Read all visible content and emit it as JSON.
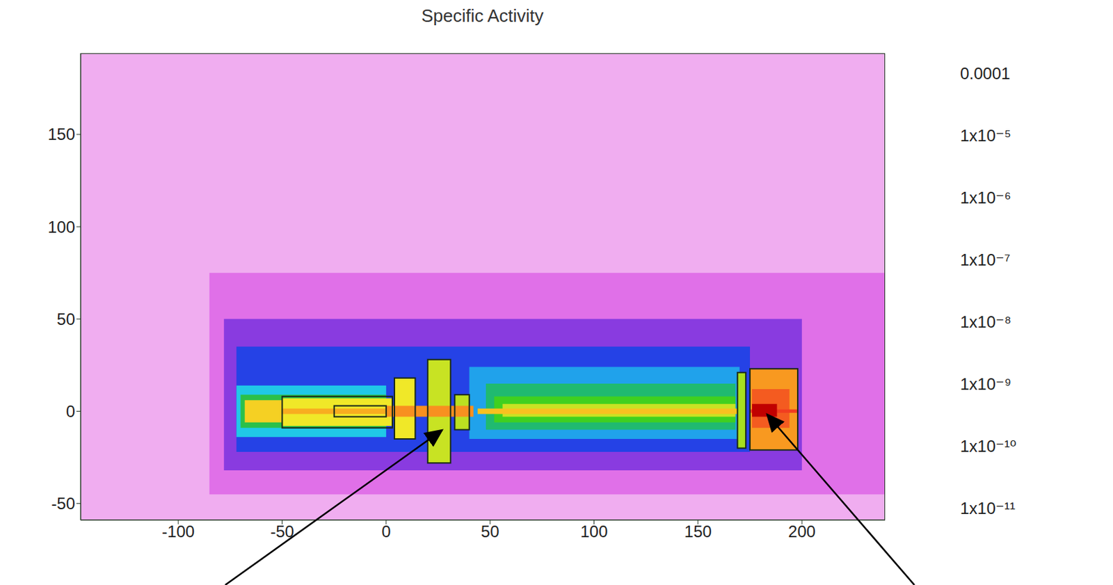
{
  "chart_data": {
    "type": "heatmap",
    "title": "Specific Activity",
    "xlim": [
      -147,
      240
    ],
    "ylim": [
      -59,
      194
    ],
    "xticks": [
      -100,
      -50,
      0,
      50,
      100,
      150,
      200
    ],
    "yticks": [
      -50,
      0,
      50,
      100,
      150
    ],
    "cells": [
      [
        -147,
        240,
        -59,
        194,
        3e-11
      ],
      [
        -85,
        240,
        -45,
        75,
        1e-10
      ],
      [
        -78,
        200,
        -32,
        50,
        4e-10
      ],
      [
        -72,
        175,
        -22,
        35,
        1.5e-09
      ],
      [
        -72,
        0,
        -14,
        14,
        1e-08
      ],
      [
        -70,
        0,
        -9,
        9,
        5e-08
      ],
      [
        40,
        170,
        -15,
        24,
        6e-09
      ],
      [
        48,
        168,
        -10,
        15,
        3e-08
      ],
      [
        52,
        168,
        -6,
        8,
        1e-07
      ],
      [
        56,
        168,
        -3,
        4,
        5e-07
      ],
      [
        44,
        170,
        -1.5,
        1.5,
        3e-06
      ],
      [
        -68,
        -50,
        -6,
        6,
        2e-06
      ],
      [
        -50,
        3,
        -8,
        7,
        1e-06
      ],
      [
        -50,
        3,
        -1.5,
        1.5,
        5e-06
      ],
      [
        4,
        14,
        -15,
        18,
        1e-06
      ],
      [
        20,
        31,
        -28,
        28,
        5e-07
      ],
      [
        33,
        40,
        -10,
        9,
        4e-07
      ],
      [
        0,
        42,
        -3,
        3,
        1e-05
      ],
      [
        169,
        173,
        -20,
        21,
        3e-07
      ],
      [
        175,
        198,
        -21,
        23,
        8e-06
      ],
      [
        176,
        194,
        -9,
        12,
        2e-05
      ],
      [
        175,
        198,
        -0.8,
        1,
        3e-05
      ],
      [
        176,
        188,
        -3,
        4,
        0.0001
      ]
    ],
    "outlines": [
      [
        -50,
        3,
        -9,
        8
      ],
      [
        -25,
        0,
        -3,
        3
      ],
      [
        4,
        14,
        -15,
        18
      ],
      [
        20,
        31,
        -28,
        28
      ],
      [
        33,
        40,
        -10,
        9
      ],
      [
        169,
        173,
        -20,
        21
      ],
      [
        175,
        198,
        -21,
        23
      ]
    ],
    "colorbar": {
      "range": [
        6e-12,
        0.0002
      ],
      "log": true,
      "ticks": [
        {
          "value": 0.0001,
          "label": "0.0001"
        },
        {
          "value": 1e-05,
          "label": "1x10⁻⁵"
        },
        {
          "value": 1e-06,
          "label": "1x10⁻⁶"
        },
        {
          "value": 1e-07,
          "label": "1x10⁻⁷"
        },
        {
          "value": 1e-08,
          "label": "1x10⁻⁸"
        },
        {
          "value": 1e-09,
          "label": "1x10⁻⁹"
        },
        {
          "value": 1e-10,
          "label": "1x10⁻¹⁰"
        },
        {
          "value": 1e-11,
          "label": "1x10⁻¹¹"
        }
      ]
    }
  }
}
